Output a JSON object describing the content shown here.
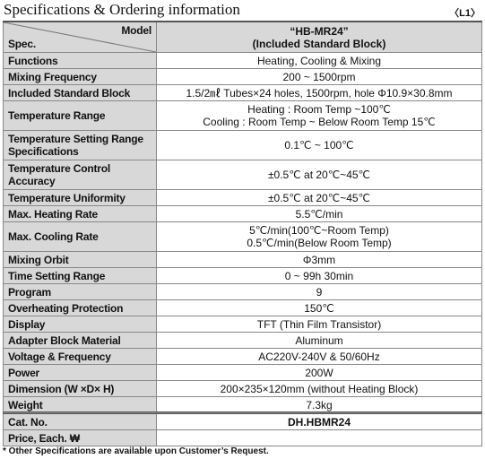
{
  "header": {
    "title": "Specifications & Ordering information",
    "code": "〈L1〉"
  },
  "table": {
    "corner_spec": "Spec.",
    "corner_model": "Model",
    "model": [
      "“HB-MR24”",
      "(Included Standard Block)"
    ],
    "rows": [
      {
        "spec": [
          "Functions"
        ],
        "value": [
          "Heating, Cooling & Mixing"
        ]
      },
      {
        "spec": [
          "Mixing Frequency"
        ],
        "value": [
          "200 ~ 1500rpm"
        ]
      },
      {
        "spec": [
          "Included Standard Block"
        ],
        "value": [
          "1.5/2㎖ Tubes×24 holes, 1500rpm, hole Φ10.9×30.8mm"
        ]
      },
      {
        "spec": [
          "Temperature Range"
        ],
        "value": [
          "Heating : Room Temp ~100℃",
          "Cooling : Room Temp ~ Below Room Temp 15℃"
        ]
      },
      {
        "spec": [
          "Temperature Setting Range",
          "Specifications"
        ],
        "value": [
          "0.1℃ ~ 100℃"
        ]
      },
      {
        "spec": [
          "Temperature Control",
          "Accuracy"
        ],
        "value": [
          "±0.5℃ at 20℃~45℃"
        ]
      },
      {
        "spec": [
          "Temperature Uniformity"
        ],
        "value": [
          "±0.5℃ at 20℃~45℃"
        ]
      },
      {
        "spec": [
          "Max. Heating Rate"
        ],
        "value": [
          "5.5℃/min"
        ]
      },
      {
        "spec": [
          "Max. Cooling Rate"
        ],
        "value": [
          "5℃/min(100℃~Room Temp)",
          "0.5℃/min(Below Room Temp)"
        ]
      },
      {
        "spec": [
          "Mixing Orbit"
        ],
        "value": [
          "Φ3mm"
        ]
      },
      {
        "spec": [
          "Time Setting Range"
        ],
        "value": [
          "0 ~ 99h 30min"
        ]
      },
      {
        "spec": [
          "Program"
        ],
        "value": [
          "9"
        ]
      },
      {
        "spec": [
          "Overheating Protection"
        ],
        "value": [
          "150℃"
        ]
      },
      {
        "spec": [
          "Display"
        ],
        "value": [
          "TFT (Thin Film Transistor)"
        ]
      },
      {
        "spec": [
          "Adapter Block Material"
        ],
        "value": [
          "Aluminum"
        ]
      },
      {
        "spec": [
          "Voltage & Frequency"
        ],
        "value": [
          "AC220V-240V & 50/60Hz"
        ]
      },
      {
        "spec": [
          "Power"
        ],
        "value": [
          "200W"
        ]
      },
      {
        "spec": [
          "Dimension (W ×D× H)"
        ],
        "value": [
          "200×235×120mm (without Heating Block)"
        ]
      },
      {
        "spec": [
          "Weight"
        ],
        "value": [
          "7.3kg"
        ]
      }
    ]
  },
  "order": {
    "rows": [
      {
        "spec": [
          "Cat. No."
        ],
        "value": [
          "DH.HBMR24"
        ]
      },
      {
        "spec": [
          "Price, Each. ₩"
        ]
      }
    ]
  },
  "note": "* Other Specifications are available upon Customer’s Request."
}
